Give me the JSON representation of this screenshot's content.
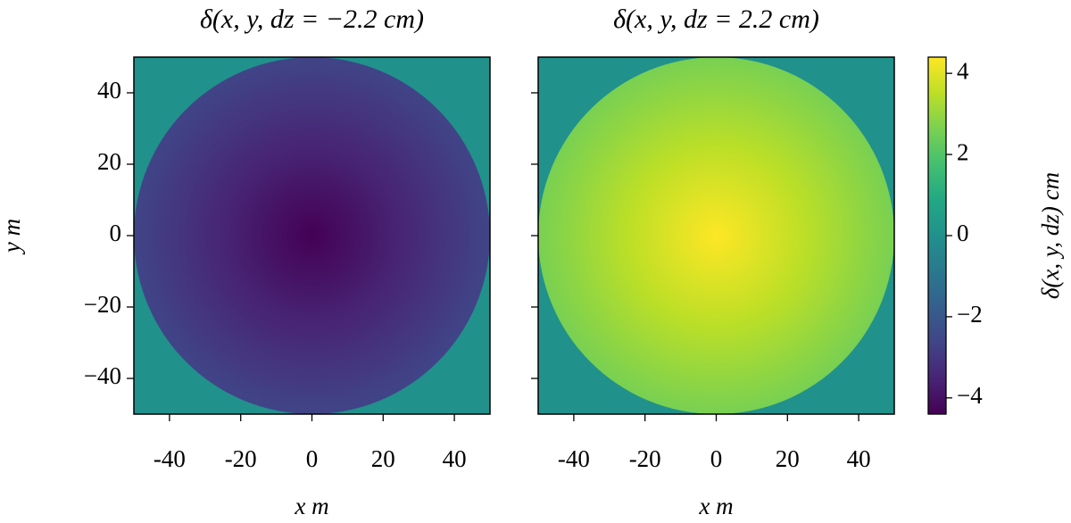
{
  "chart_data": [
    {
      "type": "heatmap",
      "title": "δ(x, y, dz = −2.2 cm)",
      "xlabel": "x m",
      "ylabel": "y m",
      "xlim": [
        -50,
        50
      ],
      "ylim": [
        -50,
        50
      ],
      "xticks": [
        {
          "value": -40,
          "label": "-40"
        },
        {
          "value": -20,
          "label": "-20"
        },
        0,
        20,
        40
      ],
      "yticks": [
        {
          "value": -40,
          "label": "−40"
        },
        {
          "value": -20,
          "label": "−20"
        },
        0,
        20,
        40
      ],
      "ytick_labels": true,
      "radius": 50,
      "center_value": -4.4,
      "edge_value": -2.6,
      "outside_value": 0
    },
    {
      "type": "heatmap",
      "title": "δ(x, y, dz = 2.2 cm)",
      "xlabel": "x m",
      "xlim": [
        -50,
        50
      ],
      "ylim": [
        -50,
        50
      ],
      "xticks": [
        {
          "value": -40,
          "label": "-40"
        },
        {
          "value": -20,
          "label": "-20"
        },
        0,
        20,
        40
      ],
      "yticks": [
        -40,
        -20,
        0,
        20,
        40
      ],
      "ytick_labels": false,
      "radius": 50,
      "center_value": 4.4,
      "edge_value": 2.6,
      "outside_value": 0
    }
  ],
  "colorbar": {
    "label": "δ(x, y, dz) cm",
    "colormap": "viridis",
    "lim": [
      -4.4,
      4.4
    ],
    "ticks": [
      {
        "value": -4,
        "label": "−4"
      },
      {
        "value": -2,
        "label": "−2"
      },
      0,
      2,
      4
    ]
  }
}
